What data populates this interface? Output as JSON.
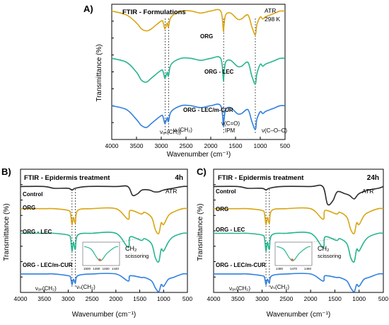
{
  "colors": {
    "control": "#2b2b2b",
    "org": "#d9a514",
    "org_lec": "#26b58f",
    "org_lec_mcur": "#2f7fe0"
  },
  "chart_data": [
    {
      "panel": "A)",
      "type": "line",
      "title": "FTIR - Formulations",
      "note_lines": [
        "ATR",
        "298 K"
      ],
      "xlabel": "Wavenumber (cm⁻¹)",
      "ylabel": "Transmittance (%)",
      "xlim": [
        4000,
        500
      ],
      "x_ticks": [
        "4000",
        "3500",
        "3000",
        "2500",
        "2000",
        "1500",
        "1000",
        "500"
      ],
      "y_ticks": "unlabeled",
      "vlines": [
        2920,
        2850,
        1740,
        1100
      ],
      "annotations": [
        "νₐₛ(CH₂)",
        "νₛ(CH₂)",
        "ν(C=O)",
        "IPM",
        "ν(C–O–C)"
      ],
      "series": [
        {
          "name": "ORG",
          "color": "#d9a514",
          "offset": 0.95,
          "x": [
            4000,
            3700,
            3500,
            3400,
            3300,
            3200,
            3000,
            2960,
            2925,
            2880,
            2855,
            2800,
            2600,
            2400,
            2200,
            2000,
            1800,
            1745,
            1735,
            1700,
            1600,
            1465,
            1380,
            1250,
            1170,
            1100,
            1070,
            1000,
            950,
            900,
            800,
            700,
            600,
            500
          ],
          "y": [
            0.0,
            0.02,
            0.06,
            0.09,
            0.1,
            0.09,
            0.05,
            0.06,
            0.09,
            0.06,
            0.08,
            0.03,
            0.0,
            0.0,
            0.01,
            0.0,
            0.0,
            0.1,
            0.08,
            0.02,
            0.01,
            0.04,
            0.04,
            0.02,
            0.08,
            0.12,
            0.07,
            0.03,
            0.04,
            0.03,
            0.02,
            0.01,
            0.0,
            0.0
          ]
        },
        {
          "name": "ORG - LEC",
          "color": "#26b58f",
          "offset": 0.6,
          "x": [
            4000,
            3700,
            3500,
            3400,
            3300,
            3200,
            3000,
            2960,
            2925,
            2880,
            2855,
            2800,
            2600,
            2400,
            2200,
            2000,
            1800,
            1745,
            1735,
            1700,
            1600,
            1465,
            1380,
            1250,
            1170,
            1100,
            1070,
            1000,
            950,
            900,
            800,
            700,
            600,
            500
          ],
          "y": [
            0.0,
            0.02,
            0.07,
            0.11,
            0.12,
            0.1,
            0.06,
            0.07,
            0.1,
            0.07,
            0.09,
            0.03,
            0.0,
            0.0,
            0.01,
            0.0,
            0.0,
            0.11,
            0.09,
            0.02,
            0.01,
            0.04,
            0.04,
            0.02,
            0.09,
            0.13,
            0.08,
            0.03,
            0.04,
            0.03,
            0.02,
            0.01,
            0.0,
            0.0
          ]
        },
        {
          "name": "ORG - LEC/m-CUR",
          "color": "#2f7fe0",
          "offset": 0.25,
          "x": [
            4000,
            3700,
            3500,
            3400,
            3300,
            3200,
            3000,
            2960,
            2925,
            2880,
            2855,
            2800,
            2600,
            2400,
            2200,
            2000,
            1800,
            1745,
            1735,
            1700,
            1600,
            1465,
            1380,
            1250,
            1170,
            1100,
            1070,
            1000,
            950,
            900,
            800,
            700,
            600,
            500
          ],
          "y": [
            0.0,
            0.02,
            0.07,
            0.1,
            0.11,
            0.09,
            0.05,
            0.06,
            0.09,
            0.06,
            0.08,
            0.03,
            0.0,
            0.0,
            0.01,
            0.0,
            0.0,
            0.1,
            0.08,
            0.02,
            0.01,
            0.04,
            0.04,
            0.02,
            0.08,
            0.12,
            0.07,
            0.03,
            0.04,
            0.03,
            0.02,
            0.01,
            0.0,
            0.0
          ]
        }
      ]
    },
    {
      "panel": "B)",
      "type": "line",
      "title": "FTIR - Epidermis treatment",
      "time_label": "4h",
      "note_lines": [
        "ATR"
      ],
      "xlabel": "Wavenumber (cm⁻¹)",
      "ylabel": "Transmittance (%)",
      "xlim": [
        4000,
        500
      ],
      "x_ticks": [
        "4000",
        "3500",
        "3000",
        "2500",
        "2000",
        "1500",
        "1000",
        "500"
      ],
      "y_ticks": "unlabeled",
      "vlines": [
        2920,
        2850
      ],
      "annotations": [
        "νₐₛ(CH₂)",
        "νₛ(CH₂)"
      ],
      "inset": {
        "label_lines": [
          "CH₂",
          "scissoring"
        ],
        "x_ticks": [
          "1500",
          "1480",
          "1460",
          "1440"
        ]
      },
      "series": [
        {
          "name": "Control",
          "color": "#2b2b2b",
          "offset": 0.86,
          "x": [
            4000,
            3500,
            3300,
            3000,
            2920,
            2850,
            2600,
            2000,
            1750,
            1650,
            1540,
            1450,
            1300,
            1200,
            1100,
            1000,
            800,
            600,
            500
          ],
          "y": [
            0.0,
            0.0,
            0.01,
            0.01,
            0.02,
            0.01,
            0.0,
            0.0,
            0.0,
            0.05,
            0.04,
            0.02,
            0.02,
            0.03,
            0.03,
            0.02,
            0.01,
            0.0,
            0.0
          ]
        },
        {
          "name": "ORG",
          "color": "#d9a514",
          "offset": 0.68,
          "x": [
            4000,
            3500,
            3300,
            3000,
            2950,
            2920,
            2890,
            2850,
            2800,
            2500,
            2000,
            1745,
            1700,
            1465,
            1400,
            1250,
            1170,
            1100,
            1050,
            1000,
            900,
            800,
            600,
            500
          ],
          "y": [
            0.0,
            0.0,
            0.0,
            0.01,
            0.03,
            0.09,
            0.05,
            0.08,
            0.01,
            0.0,
            0.0,
            0.06,
            0.01,
            0.03,
            0.02,
            0.05,
            0.12,
            0.14,
            0.08,
            0.09,
            0.04,
            0.02,
            0.0,
            0.0
          ]
        },
        {
          "name": "ORG - LEC",
          "color": "#26b58f",
          "offset": 0.48,
          "x": [
            4000,
            3500,
            3300,
            3000,
            2950,
            2920,
            2890,
            2850,
            2800,
            2500,
            2000,
            1745,
            1700,
            1465,
            1400,
            1250,
            1170,
            1100,
            1050,
            1000,
            900,
            800,
            600,
            500
          ],
          "y": [
            0.0,
            0.0,
            0.0,
            0.01,
            0.03,
            0.1,
            0.05,
            0.09,
            0.01,
            0.0,
            0.0,
            0.08,
            0.02,
            0.04,
            0.03,
            0.06,
            0.14,
            0.16,
            0.09,
            0.1,
            0.05,
            0.02,
            0.0,
            0.0
          ]
        },
        {
          "name": "ORG - LEC/m-CUR",
          "color": "#2f7fe0",
          "offset": 0.15,
          "x": [
            4000,
            3500,
            3300,
            3000,
            2950,
            2920,
            2890,
            2850,
            2800,
            2500,
            2000,
            1745,
            1700,
            1465,
            1400,
            1250,
            1170,
            1100,
            1050,
            1000,
            900,
            800,
            600,
            500
          ],
          "y": [
            0.0,
            0.0,
            0.0,
            0.01,
            0.02,
            0.06,
            0.03,
            0.05,
            0.01,
            0.0,
            0.0,
            0.04,
            0.01,
            0.02,
            0.02,
            0.04,
            0.08,
            0.1,
            0.06,
            0.07,
            0.03,
            0.02,
            0.0,
            0.0
          ]
        }
      ]
    },
    {
      "panel": "C)",
      "type": "line",
      "title": "FTIR - Epidermis treatment",
      "time_label": "24h",
      "note_lines": [
        "ATR"
      ],
      "xlabel": "Wavenumber (cm⁻¹)",
      "ylabel": "Transmittance (%)",
      "xlim": [
        4000,
        500
      ],
      "x_ticks": [
        "4000",
        "3500",
        "3000",
        "2500",
        "2000",
        "1500",
        "1000",
        "500"
      ],
      "y_ticks": "unlabeled",
      "vlines": [
        2920,
        2850
      ],
      "annotations": [
        "νₐₛ(CH₂)",
        "νₛ(CH₂)"
      ],
      "inset": {
        "label_lines": [
          "CH₂",
          "scissoring"
        ],
        "x_ticks": [
          "1480",
          "1470",
          "1460"
        ]
      },
      "series": [
        {
          "name": "Control",
          "color": "#2b2b2b",
          "offset": 0.86,
          "x": [
            4000,
            3500,
            3300,
            3000,
            2920,
            2850,
            2600,
            2000,
            1750,
            1650,
            1540,
            1450,
            1300,
            1200,
            1100,
            1000,
            800,
            600,
            500
          ],
          "y": [
            0.0,
            0.0,
            0.01,
            0.01,
            0.02,
            0.01,
            0.0,
            0.0,
            0.0,
            0.1,
            0.08,
            0.03,
            0.04,
            0.05,
            0.07,
            0.04,
            0.02,
            0.01,
            0.0
          ]
        },
        {
          "name": "ORG",
          "color": "#d9a514",
          "offset": 0.68,
          "x": [
            4000,
            3500,
            3300,
            3000,
            2950,
            2920,
            2890,
            2850,
            2800,
            2500,
            2000,
            1745,
            1700,
            1465,
            1400,
            1250,
            1170,
            1100,
            1050,
            1000,
            900,
            800,
            600,
            500
          ],
          "y": [
            0.0,
            0.0,
            0.0,
            0.01,
            0.03,
            0.09,
            0.05,
            0.08,
            0.01,
            0.0,
            0.0,
            0.06,
            0.01,
            0.03,
            0.02,
            0.05,
            0.12,
            0.14,
            0.08,
            0.09,
            0.04,
            0.02,
            0.0,
            0.0
          ]
        },
        {
          "name": "ORG - LEC",
          "color": "#26b58f",
          "offset": 0.48,
          "x": [
            4000,
            3500,
            3300,
            3000,
            2950,
            2920,
            2890,
            2850,
            2800,
            2500,
            2000,
            1745,
            1700,
            1465,
            1400,
            1250,
            1170,
            1100,
            1050,
            1000,
            900,
            800,
            600,
            500
          ],
          "y": [
            0.0,
            0.0,
            0.0,
            0.01,
            0.03,
            0.1,
            0.05,
            0.09,
            0.01,
            0.0,
            0.0,
            0.08,
            0.02,
            0.04,
            0.03,
            0.06,
            0.14,
            0.16,
            0.09,
            0.1,
            0.05,
            0.02,
            0.0,
            0.0
          ]
        },
        {
          "name": "ORG - LEC/m-CUR",
          "color": "#2f7fe0",
          "offset": 0.15,
          "x": [
            4000,
            3500,
            3300,
            3000,
            2950,
            2920,
            2890,
            2850,
            2800,
            2500,
            2000,
            1745,
            1700,
            1465,
            1400,
            1250,
            1170,
            1100,
            1050,
            1000,
            900,
            800,
            600,
            500
          ],
          "y": [
            0.0,
            0.0,
            0.0,
            0.01,
            0.02,
            0.06,
            0.03,
            0.05,
            0.01,
            0.0,
            0.0,
            0.04,
            0.01,
            0.02,
            0.02,
            0.04,
            0.08,
            0.1,
            0.06,
            0.07,
            0.03,
            0.02,
            0.0,
            0.0
          ]
        }
      ]
    }
  ]
}
